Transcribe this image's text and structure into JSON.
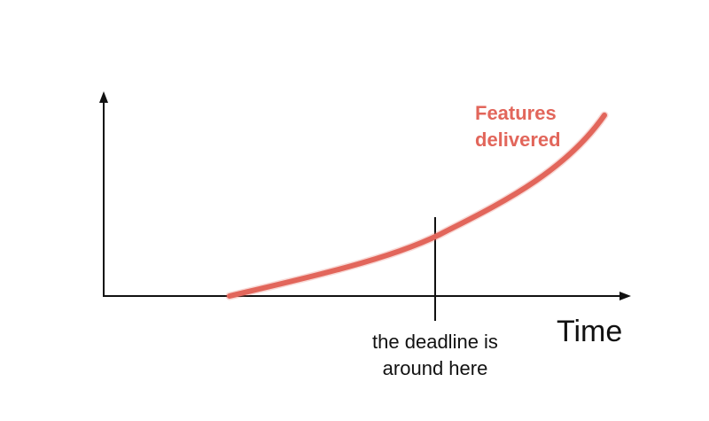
{
  "diagram": {
    "x_axis_label": "Time",
    "series_label_lines": [
      "Features",
      "delivered"
    ],
    "deadline_label_lines": [
      "the deadline is",
      "around here"
    ],
    "series_color": "#e2665b",
    "axis_color": "#111111",
    "icons": {
      "x_axis_arrow": "arrow-right-icon",
      "y_axis_arrow": "arrow-up-icon"
    }
  }
}
